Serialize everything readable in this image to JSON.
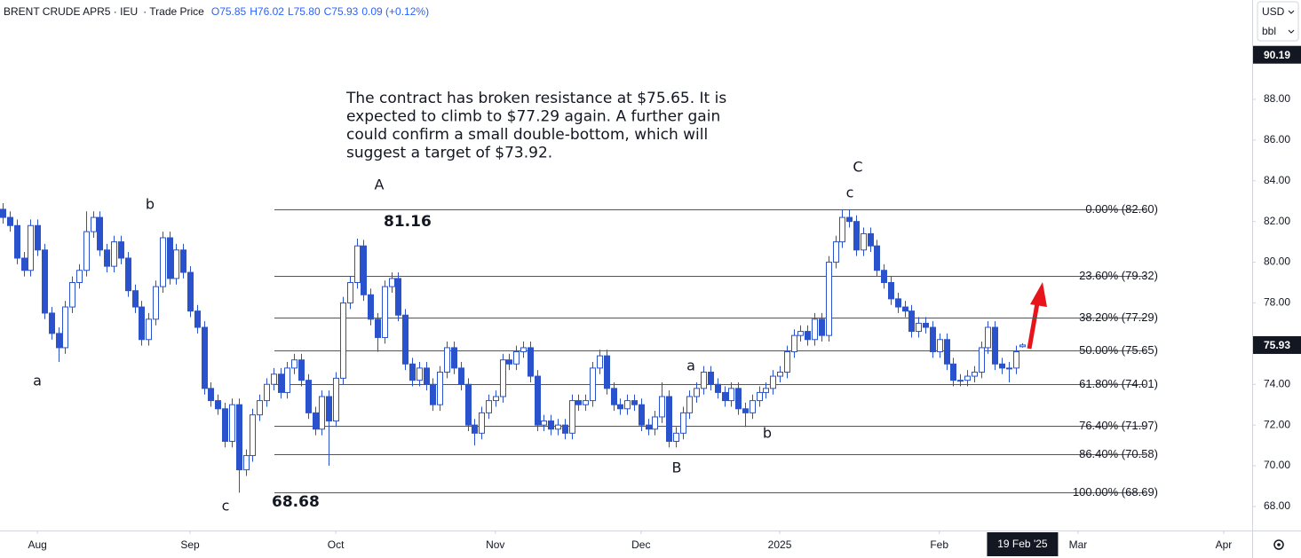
{
  "chart_data": {
    "type": "candlestick",
    "header": [
      "BRENT CRUDE APR5 · IEU",
      "· Trade Price"
    ],
    "ohlc_labels": [
      "O75.85",
      "H76.02",
      "L75.80",
      "C75.93",
      "0.09 (+0.12%)"
    ],
    "currency": "USD",
    "unit": "bbl",
    "color": "#2a52cc",
    "xlim": [
      -0.4,
      180.1
    ],
    "xticks": [
      {
        "value": 5,
        "label": "Aug"
      },
      {
        "value": 27,
        "label": "Sep"
      },
      {
        "value": 48,
        "label": "Oct"
      },
      {
        "value": 71,
        "label": "Nov"
      },
      {
        "value": 92,
        "label": "Dec"
      },
      {
        "value": 112,
        "label": "2025"
      },
      {
        "value": 135,
        "label": "Feb"
      },
      {
        "value": 155,
        "label": "Mar"
      },
      {
        "value": 176,
        "label": "Apr"
      }
    ],
    "crosshair_x": {
      "value": 147,
      "label": "19 Feb '25"
    },
    "ylim": [
      66.82,
      92.88
    ],
    "yticks": [
      {
        "value": 68,
        "label": "68.00"
      },
      {
        "value": 70,
        "label": "70.00"
      },
      {
        "value": 72,
        "label": "72.00"
      },
      {
        "value": 74,
        "label": "74.00"
      },
      {
        "value": 76,
        "label": "76.00"
      },
      {
        "value": 78,
        "label": "78.00"
      },
      {
        "value": 80,
        "label": "80.00"
      },
      {
        "value": 82,
        "label": "82.00"
      },
      {
        "value": 84,
        "label": "84.00"
      },
      {
        "value": 86,
        "label": "86.00"
      },
      {
        "value": 88,
        "label": "88.00"
      }
    ],
    "price_tags": [
      90.19,
      75.93
    ],
    "fib_levels": [
      {
        "value": 82.6,
        "label": "0.00% (82.60)"
      },
      {
        "value": 79.32,
        "label": "23.60% (79.32)"
      },
      {
        "value": 77.29,
        "label": "38.20% (77.29)"
      },
      {
        "value": 75.65,
        "label": "50.00% (75.65)"
      },
      {
        "value": 74.01,
        "label": "61.80% (74.01)"
      },
      {
        "value": 71.97,
        "label": "76.40% (71.97)"
      },
      {
        "value": 70.58,
        "label": "86.40% (70.58)"
      },
      {
        "value": 68.69,
        "label": "100.00% (68.69)"
      }
    ],
    "annotations": [
      "a",
      "b",
      "c",
      "68.68",
      "A",
      "81.16",
      "B",
      "a",
      "b",
      "C",
      "c"
    ],
    "note": [
      "The contract has broken resistance at $75.65. It is",
      "expected to climb to $77.29 again. A further gain",
      "could confirm a small double-bottom, which will",
      "suggest a target of $73.92."
    ],
    "candles": [
      [
        82.6,
        82.9,
        81.9,
        82.2
      ],
      [
        82.2,
        82.5,
        81.5,
        81.8
      ],
      [
        81.8,
        82.1,
        79.9,
        80.2
      ],
      [
        80.2,
        80.5,
        79.3,
        79.6
      ],
      [
        79.6,
        82.1,
        79.3,
        81.8
      ],
      [
        81.8,
        82.1,
        80.3,
        80.6
      ],
      [
        80.6,
        80.9,
        77.2,
        77.5
      ],
      [
        77.5,
        77.8,
        76.2,
        76.5
      ],
      [
        76.5,
        76.8,
        75.1,
        75.8
      ],
      [
        75.8,
        78.1,
        75.5,
        77.8
      ],
      [
        77.8,
        79.3,
        77.5,
        79.0
      ],
      [
        79.0,
        79.9,
        78.7,
        79.6
      ],
      [
        79.6,
        82.5,
        79.3,
        81.5
      ],
      [
        81.5,
        82.5,
        81.2,
        82.2
      ],
      [
        82.2,
        82.5,
        80.3,
        80.6
      ],
      [
        80.6,
        80.9,
        79.5,
        79.8
      ],
      [
        79.8,
        81.3,
        79.5,
        81.0
      ],
      [
        81.0,
        81.3,
        79.9,
        80.2
      ],
      [
        80.2,
        80.5,
        78.3,
        78.6
      ],
      [
        78.6,
        78.9,
        77.5,
        77.8
      ],
      [
        77.8,
        78.1,
        75.9,
        76.2
      ],
      [
        76.2,
        77.5,
        75.9,
        77.2
      ],
      [
        77.2,
        79.1,
        76.9,
        78.8
      ],
      [
        78.8,
        81.5,
        78.5,
        81.2
      ],
      [
        81.2,
        81.5,
        78.9,
        79.2
      ],
      [
        79.2,
        80.9,
        78.9,
        80.6
      ],
      [
        80.6,
        80.9,
        79.2,
        79.5
      ],
      [
        79.5,
        79.8,
        77.3,
        77.6
      ],
      [
        77.6,
        77.9,
        76.5,
        76.8
      ],
      [
        76.8,
        77.1,
        73.5,
        73.8
      ],
      [
        73.8,
        74.1,
        72.9,
        73.2
      ],
      [
        73.2,
        73.5,
        72.5,
        72.8
      ],
      [
        72.8,
        73.1,
        70.9,
        71.2
      ],
      [
        71.2,
        73.3,
        70.9,
        73.0
      ],
      [
        73.0,
        73.3,
        68.68,
        69.8
      ],
      [
        69.8,
        70.8,
        69.5,
        70.5
      ],
      [
        70.5,
        72.8,
        70.2,
        72.5
      ],
      [
        72.5,
        73.5,
        72.2,
        73.2
      ],
      [
        73.2,
        74.3,
        72.9,
        74.0
      ],
      [
        74.0,
        74.8,
        73.7,
        74.5
      ],
      [
        74.5,
        74.8,
        73.3,
        73.6
      ],
      [
        73.6,
        75.1,
        73.3,
        74.8
      ],
      [
        74.8,
        75.5,
        74.5,
        75.2
      ],
      [
        75.2,
        75.5,
        73.9,
        74.2
      ],
      [
        74.2,
        74.5,
        72.3,
        72.6
      ],
      [
        72.6,
        72.9,
        71.5,
        71.8
      ],
      [
        71.8,
        73.7,
        71.5,
        73.4
      ],
      [
        73.4,
        73.7,
        70.0,
        72.2
      ],
      [
        72.2,
        74.6,
        71.9,
        74.3
      ],
      [
        74.3,
        78.3,
        74.0,
        78.0
      ],
      [
        78.0,
        79.3,
        77.7,
        79.0
      ],
      [
        79.0,
        81.16,
        78.7,
        80.8
      ],
      [
        80.8,
        81.1,
        78.1,
        78.4
      ],
      [
        78.4,
        78.7,
        76.9,
        77.2
      ],
      [
        77.2,
        77.5,
        75.6,
        76.3
      ],
      [
        76.3,
        79.1,
        76.0,
        78.8
      ],
      [
        78.8,
        79.5,
        78.5,
        79.2
      ],
      [
        79.2,
        79.5,
        77.1,
        77.4
      ],
      [
        77.4,
        77.7,
        74.7,
        75.0
      ],
      [
        75.0,
        75.3,
        73.9,
        74.2
      ],
      [
        74.2,
        75.1,
        73.9,
        74.8
      ],
      [
        74.8,
        75.1,
        73.7,
        74.0
      ],
      [
        74.0,
        74.3,
        72.7,
        73.0
      ],
      [
        73.0,
        74.9,
        72.7,
        74.6
      ],
      [
        74.6,
        76.1,
        74.3,
        75.8
      ],
      [
        75.8,
        76.1,
        74.5,
        74.8
      ],
      [
        74.8,
        75.1,
        73.7,
        74.0
      ],
      [
        74.0,
        74.3,
        71.7,
        72.0
      ],
      [
        72.0,
        72.3,
        71.0,
        71.6
      ],
      [
        71.6,
        72.9,
        71.3,
        72.6
      ],
      [
        72.6,
        73.5,
        72.3,
        73.2
      ],
      [
        73.2,
        73.7,
        72.9,
        73.4
      ],
      [
        73.4,
        75.5,
        73.1,
        75.2
      ],
      [
        75.2,
        75.5,
        74.7,
        75.0
      ],
      [
        75.0,
        75.9,
        74.7,
        75.6
      ],
      [
        75.6,
        76.1,
        75.3,
        75.8
      ],
      [
        75.8,
        76.1,
        74.1,
        74.4
      ],
      [
        74.4,
        74.7,
        71.7,
        72.0
      ],
      [
        72.0,
        72.5,
        71.7,
        72.2
      ],
      [
        72.2,
        72.5,
        71.5,
        71.8
      ],
      [
        71.8,
        72.3,
        71.5,
        72.0
      ],
      [
        72.0,
        72.3,
        71.3,
        71.6
      ],
      [
        71.6,
        73.5,
        71.3,
        73.2
      ],
      [
        73.2,
        73.5,
        72.7,
        73.0
      ],
      [
        73.0,
        73.5,
        72.7,
        73.2
      ],
      [
        73.2,
        75.1,
        72.9,
        74.8
      ],
      [
        74.8,
        75.7,
        74.5,
        75.4
      ],
      [
        75.4,
        75.7,
        73.5,
        73.8
      ],
      [
        73.8,
        74.1,
        72.7,
        73.0
      ],
      [
        73.0,
        73.3,
        72.5,
        72.8
      ],
      [
        72.8,
        73.5,
        72.5,
        73.2
      ],
      [
        73.2,
        73.5,
        72.7,
        73.0
      ],
      [
        73.0,
        73.3,
        71.7,
        72.0
      ],
      [
        72.0,
        72.3,
        71.5,
        71.8
      ],
      [
        71.8,
        72.7,
        71.5,
        72.4
      ],
      [
        72.4,
        74.1,
        72.1,
        73.4
      ],
      [
        73.4,
        73.7,
        70.9,
        71.2
      ],
      [
        71.2,
        71.9,
        70.9,
        71.6
      ],
      [
        71.6,
        72.9,
        71.3,
        72.6
      ],
      [
        72.6,
        73.7,
        72.3,
        73.4
      ],
      [
        73.4,
        74.1,
        73.1,
        73.8
      ],
      [
        73.8,
        74.9,
        73.5,
        74.6
      ],
      [
        74.6,
        74.9,
        73.7,
        74.0
      ],
      [
        74.0,
        74.3,
        73.3,
        73.6
      ],
      [
        73.6,
        73.9,
        72.9,
        73.2
      ],
      [
        73.2,
        74.1,
        72.9,
        73.8
      ],
      [
        73.8,
        74.1,
        72.5,
        72.8
      ],
      [
        72.8,
        73.1,
        71.9,
        72.6
      ],
      [
        72.6,
        73.5,
        72.3,
        73.2
      ],
      [
        73.2,
        73.9,
        72.9,
        73.6
      ],
      [
        73.6,
        74.1,
        73.3,
        73.8
      ],
      [
        73.8,
        74.7,
        73.5,
        74.4
      ],
      [
        74.4,
        74.9,
        74.1,
        74.6
      ],
      [
        74.6,
        75.9,
        74.3,
        75.6
      ],
      [
        75.6,
        76.7,
        75.3,
        76.4
      ],
      [
        76.4,
        76.9,
        76.1,
        76.6
      ],
      [
        76.6,
        76.9,
        75.9,
        76.2
      ],
      [
        76.2,
        77.5,
        75.9,
        77.2
      ],
      [
        77.2,
        77.5,
        76.1,
        76.4
      ],
      [
        76.4,
        80.3,
        76.1,
        80.0
      ],
      [
        80.0,
        81.3,
        79.7,
        81.0
      ],
      [
        81.0,
        82.6,
        80.7,
        82.2
      ],
      [
        82.2,
        82.6,
        81.7,
        82.0
      ],
      [
        82.0,
        82.3,
        80.3,
        80.6
      ],
      [
        80.6,
        81.7,
        80.3,
        81.4
      ],
      [
        81.4,
        81.7,
        80.5,
        80.8
      ],
      [
        80.8,
        81.1,
        79.3,
        79.6
      ],
      [
        79.6,
        79.9,
        78.7,
        79.0
      ],
      [
        79.0,
        79.3,
        77.9,
        78.2
      ],
      [
        78.2,
        78.5,
        77.5,
        77.8
      ],
      [
        77.8,
        78.1,
        77.3,
        77.6
      ],
      [
        77.6,
        77.9,
        76.3,
        76.6
      ],
      [
        76.6,
        77.3,
        76.3,
        77.0
      ],
      [
        77.0,
        77.3,
        76.5,
        76.8
      ],
      [
        76.8,
        77.1,
        75.3,
        75.6
      ],
      [
        75.6,
        76.5,
        75.3,
        76.2
      ],
      [
        76.2,
        76.5,
        74.7,
        75.0
      ],
      [
        75.0,
        75.3,
        73.9,
        74.2
      ],
      [
        74.2,
        74.5,
        73.9,
        74.2
      ],
      [
        74.2,
        74.7,
        73.9,
        74.4
      ],
      [
        74.4,
        74.9,
        74.1,
        74.6
      ],
      [
        74.6,
        76.1,
        74.3,
        75.8
      ],
      [
        75.8,
        77.1,
        75.5,
        76.8
      ],
      [
        76.8,
        77.1,
        74.7,
        75.0
      ],
      [
        75.0,
        75.3,
        74.5,
        74.8
      ],
      [
        74.8,
        75.1,
        74.1,
        74.8
      ],
      [
        74.8,
        75.9,
        74.5,
        75.6
      ],
      [
        75.85,
        76.02,
        75.8,
        75.93
      ]
    ]
  }
}
